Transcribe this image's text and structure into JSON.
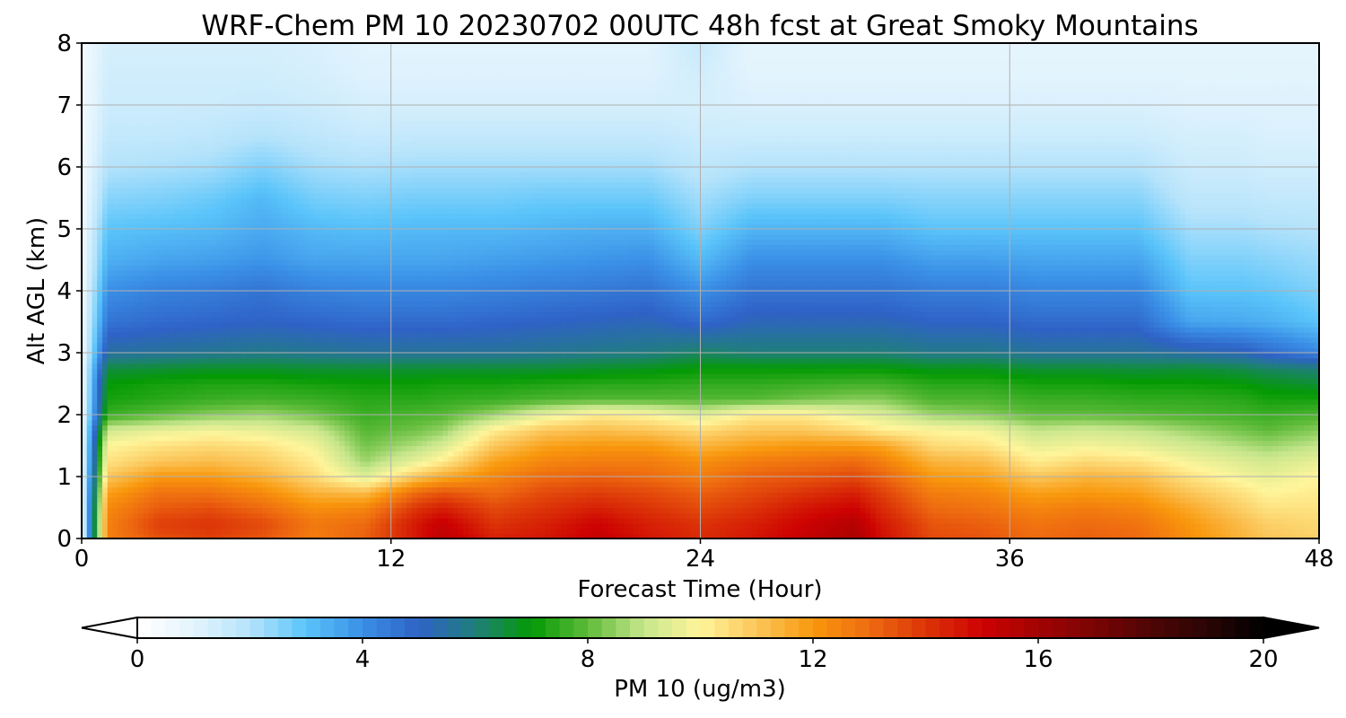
{
  "chart_data": {
    "type": "heatmap",
    "title": "WRF-Chem PM 10  20230702 00UTC 48h fcst at Great Smoky Mountains",
    "xlabel": "Forecast Time (Hour)",
    "ylabel": "Alt AGL (km)",
    "xlim": [
      0,
      48
    ],
    "ylim": [
      0,
      8
    ],
    "x_ticks": [
      0,
      12,
      24,
      36,
      48
    ],
    "y_ticks": [
      0,
      1,
      2,
      3,
      4,
      5,
      6,
      7,
      8
    ],
    "grid": true,
    "x": [
      0,
      1,
      3,
      5,
      7,
      9,
      11,
      13,
      14,
      16,
      18,
      20,
      22,
      24,
      26,
      28,
      30,
      31,
      33,
      35,
      37,
      39,
      41,
      43,
      45,
      46,
      48
    ],
    "y": [
      0,
      0.25,
      0.5,
      0.75,
      1.0,
      1.25,
      1.5,
      1.75,
      2.0,
      2.25,
      2.5,
      2.75,
      3.0,
      3.5,
      4.0,
      4.5,
      5.0,
      5.5,
      6.0,
      6.5,
      7.0,
      7.5,
      8.0
    ],
    "profiles": [
      {
        "hour": 0,
        "pm10": [
          0.5,
          0.5,
          0.5,
          0.5,
          0.5,
          0.5,
          0.5,
          0.5,
          0.5,
          0.5,
          0.5,
          0.5,
          0.5,
          0.5,
          0.5,
          0.5,
          0.5,
          0.5,
          0.5,
          0.5,
          0.5,
          0.5,
          0.5
        ]
      },
      {
        "hour": 1,
        "pm10": [
          12.5,
          12.5,
          12.3,
          11.8,
          11.0,
          10.4,
          10.0,
          9.2,
          7.6,
          7.2,
          7.0,
          6.5,
          5.5,
          4.6,
          4.0,
          3.4,
          3.0,
          2.5,
          2.0,
          1.7,
          1.5,
          1.4,
          1.3
        ]
      },
      {
        "hour": 3,
        "pm10": [
          13.5,
          13.8,
          13.3,
          12.8,
          12.0,
          11.0,
          10.4,
          9.6,
          8.0,
          7.4,
          7.2,
          6.6,
          5.6,
          4.8,
          4.3,
          3.6,
          3.1,
          2.6,
          2.1,
          1.7,
          1.5,
          1.4,
          1.3
        ]
      },
      {
        "hour": 5,
        "pm10": [
          13.8,
          14.0,
          13.5,
          12.8,
          12.0,
          11.2,
          10.6,
          9.8,
          8.4,
          7.6,
          7.3,
          6.7,
          5.7,
          4.9,
          4.4,
          3.7,
          3.2,
          2.8,
          2.2,
          1.8,
          1.5,
          1.4,
          1.3
        ]
      },
      {
        "hour": 7,
        "pm10": [
          13.4,
          13.6,
          13.0,
          12.3,
          11.5,
          10.9,
          10.4,
          9.6,
          8.6,
          7.7,
          7.3,
          6.7,
          5.8,
          5.0,
          4.6,
          3.9,
          3.5,
          3.2,
          2.6,
          2.0,
          1.6,
          1.4,
          1.3
        ]
      },
      {
        "hour": 9,
        "pm10": [
          12.6,
          12.7,
          12.2,
          11.4,
          10.6,
          10.2,
          9.8,
          9.2,
          8.2,
          7.6,
          7.2,
          6.6,
          5.7,
          4.9,
          4.3,
          3.6,
          3.2,
          2.7,
          2.2,
          1.8,
          1.5,
          1.3,
          1.2
        ]
      },
      {
        "hour": 11,
        "pm10": [
          13.2,
          13.0,
          12.4,
          11.2,
          9.4,
          8.6,
          8.2,
          7.9,
          7.6,
          7.4,
          7.1,
          6.6,
          5.6,
          4.8,
          4.2,
          3.6,
          3.1,
          2.6,
          2.1,
          1.6,
          1.3,
          1.1,
          1.0
        ]
      },
      {
        "hour": 13,
        "pm10": [
          14.6,
          14.6,
          14.0,
          13.0,
          11.0,
          9.6,
          8.8,
          8.2,
          7.8,
          7.4,
          7.1,
          6.6,
          5.6,
          4.8,
          4.2,
          3.6,
          3.2,
          2.7,
          2.2,
          1.7,
          1.3,
          1.1,
          1.0
        ]
      },
      {
        "hour": 14,
        "pm10": [
          15.4,
          15.2,
          14.4,
          13.4,
          11.6,
          10.2,
          9.3,
          8.5,
          7.9,
          7.5,
          7.2,
          6.6,
          5.6,
          4.8,
          4.2,
          3.6,
          3.2,
          2.7,
          2.2,
          1.7,
          1.3,
          1.1,
          1.0
        ]
      },
      {
        "hour": 16,
        "pm10": [
          14.4,
          14.0,
          13.6,
          13.0,
          12.4,
          11.8,
          11.0,
          10.2,
          8.6,
          7.6,
          7.2,
          6.6,
          5.6,
          4.9,
          4.3,
          3.7,
          3.2,
          2.7,
          2.2,
          1.7,
          1.3,
          1.1,
          1.0
        ]
      },
      {
        "hour": 18,
        "pm10": [
          14.6,
          14.4,
          14.0,
          13.6,
          13.0,
          12.4,
          11.8,
          11.0,
          9.6,
          7.8,
          7.3,
          6.6,
          5.7,
          5.0,
          4.4,
          3.8,
          3.3,
          2.8,
          2.2,
          1.7,
          1.3,
          1.1,
          1.0
        ]
      },
      {
        "hour": 20,
        "pm10": [
          15.2,
          15.0,
          14.4,
          13.8,
          13.2,
          12.6,
          12.0,
          11.2,
          10.2,
          7.9,
          7.4,
          6.7,
          5.8,
          5.1,
          4.5,
          3.9,
          3.4,
          2.8,
          2.2,
          1.7,
          1.3,
          1.1,
          1.0
        ]
      },
      {
        "hour": 22,
        "pm10": [
          14.6,
          14.4,
          14.0,
          13.6,
          13.0,
          12.6,
          12.0,
          11.0,
          10.0,
          7.9,
          7.4,
          6.8,
          5.9,
          5.2,
          4.6,
          4.0,
          3.4,
          2.8,
          2.2,
          1.7,
          1.3,
          1.1,
          1.0
        ]
      },
      {
        "hour": 24,
        "pm10": [
          14.2,
          14.0,
          13.6,
          13.2,
          12.6,
          12.2,
          11.4,
          10.6,
          9.4,
          7.9,
          7.5,
          7.0,
          6.2,
          4.8,
          4.0,
          3.2,
          2.6,
          2.2,
          1.8,
          1.5,
          1.3,
          1.4,
          1.6
        ]
      },
      {
        "hour": 26,
        "pm10": [
          14.6,
          14.4,
          14.0,
          13.6,
          13.2,
          12.6,
          11.8,
          11.0,
          10.2,
          7.9,
          7.5,
          7.0,
          6.0,
          5.2,
          4.6,
          4.0,
          3.3,
          2.6,
          2.0,
          1.5,
          1.2,
          1.0,
          0.9
        ]
      },
      {
        "hour": 28,
        "pm10": [
          15.2,
          15.0,
          14.6,
          14.0,
          13.4,
          12.8,
          12.0,
          11.0,
          10.2,
          8.2,
          7.6,
          7.0,
          6.0,
          5.2,
          4.6,
          4.0,
          3.3,
          2.6,
          2.0,
          1.5,
          1.2,
          1.0,
          0.9
        ]
      },
      {
        "hour": 30,
        "pm10": [
          15.8,
          15.6,
          15.0,
          14.4,
          13.6,
          13.0,
          12.0,
          10.6,
          9.6,
          8.4,
          7.7,
          7.0,
          6.0,
          5.2,
          4.6,
          4.0,
          3.3,
          2.6,
          2.0,
          1.5,
          1.2,
          1.0,
          0.9
        ]
      },
      {
        "hour": 31,
        "pm10": [
          14.8,
          14.6,
          14.2,
          13.8,
          13.2,
          12.6,
          11.8,
          10.2,
          9.4,
          8.4,
          7.7,
          7.0,
          6.0,
          5.2,
          4.6,
          4.0,
          3.3,
          2.6,
          2.0,
          1.5,
          1.2,
          1.0,
          0.9
        ]
      },
      {
        "hour": 33,
        "pm10": [
          13.6,
          13.4,
          13.0,
          12.6,
          12.0,
          11.4,
          10.6,
          10.0,
          8.6,
          7.8,
          7.4,
          6.8,
          5.8,
          5.0,
          4.4,
          3.7,
          3.0,
          2.5,
          2.0,
          1.5,
          1.2,
          1.0,
          0.9
        ]
      },
      {
        "hour": 35,
        "pm10": [
          13.4,
          13.2,
          12.8,
          12.4,
          11.8,
          11.2,
          10.4,
          9.8,
          8.4,
          7.8,
          7.4,
          6.8,
          5.8,
          5.0,
          4.4,
          3.7,
          3.0,
          2.5,
          2.0,
          1.5,
          1.2,
          1.0,
          0.9
        ]
      },
      {
        "hour": 37,
        "pm10": [
          13.0,
          12.8,
          12.4,
          11.8,
          11.0,
          10.2,
          9.6,
          9.0,
          8.0,
          7.6,
          7.2,
          6.6,
          5.6,
          4.8,
          4.2,
          3.6,
          3.0,
          2.5,
          2.0,
          1.5,
          1.2,
          1.0,
          0.9
        ]
      },
      {
        "hour": 39,
        "pm10": [
          13.2,
          13.0,
          12.6,
          12.0,
          11.4,
          10.6,
          9.8,
          9.2,
          8.0,
          7.6,
          7.2,
          6.6,
          5.6,
          4.8,
          4.2,
          3.6,
          3.0,
          2.5,
          2.0,
          1.5,
          1.2,
          1.0,
          0.9
        ]
      },
      {
        "hour": 41,
        "pm10": [
          13.0,
          12.8,
          12.4,
          11.8,
          11.2,
          10.4,
          9.6,
          9.0,
          7.9,
          7.5,
          7.1,
          6.5,
          5.6,
          4.8,
          4.2,
          3.6,
          3.0,
          2.5,
          2.0,
          1.5,
          1.2,
          1.0,
          0.9
        ]
      },
      {
        "hour": 43,
        "pm10": [
          12.2,
          12.0,
          11.6,
          11.0,
          10.4,
          9.8,
          9.2,
          8.6,
          7.8,
          7.5,
          7.1,
          6.6,
          5.4,
          3.6,
          3.0,
          2.6,
          2.2,
          1.8,
          1.5,
          1.3,
          1.1,
          1.0,
          0.9
        ]
      },
      {
        "hour": 45,
        "pm10": [
          11.4,
          11.2,
          10.8,
          10.4,
          9.8,
          9.4,
          8.8,
          8.2,
          7.7,
          7.4,
          7.0,
          6.4,
          5.2,
          3.5,
          3.0,
          2.6,
          2.2,
          1.8,
          1.5,
          1.3,
          1.1,
          1.0,
          0.9
        ]
      },
      {
        "hour": 46,
        "pm10": [
          11.0,
          10.8,
          10.4,
          10.0,
          9.6,
          9.2,
          8.6,
          8.0,
          7.6,
          7.2,
          6.8,
          6.2,
          4.8,
          3.4,
          2.9,
          2.5,
          2.1,
          1.7,
          1.4,
          1.2,
          1.1,
          1.0,
          0.9
        ]
      },
      {
        "hour": 48,
        "pm10": [
          10.8,
          10.6,
          10.4,
          10.2,
          10.0,
          9.6,
          9.0,
          8.4,
          7.8,
          7.2,
          6.6,
          6.0,
          4.2,
          3.0,
          2.6,
          2.3,
          2.0,
          1.7,
          1.4,
          1.2,
          1.1,
          1.0,
          0.9
        ]
      }
    ],
    "colorbar": {
      "label": "PM 10  (ug/m3)",
      "min": 0,
      "max": 20,
      "ticks": [
        0,
        4,
        8,
        12,
        16,
        20
      ],
      "extend": "both",
      "orientation": "horizontal",
      "placement": "bottom",
      "stops": [
        {
          "value": 0,
          "color": "#ffffff"
        },
        {
          "value": 1,
          "color": "#e3f4fd"
        },
        {
          "value": 2,
          "color": "#b5e3fb"
        },
        {
          "value": 3,
          "color": "#5ac4fa"
        },
        {
          "value": 4,
          "color": "#3a8fe6"
        },
        {
          "value": 5,
          "color": "#2f62c6"
        },
        {
          "value": 6,
          "color": "#1f7f7a"
        },
        {
          "value": 7,
          "color": "#049a04"
        },
        {
          "value": 8,
          "color": "#5fbb3a"
        },
        {
          "value": 9,
          "color": "#c7e68c"
        },
        {
          "value": 10,
          "color": "#fff59b"
        },
        {
          "value": 11,
          "color": "#fbc65a"
        },
        {
          "value": 12,
          "color": "#f9980d"
        },
        {
          "value": 13,
          "color": "#ee6b10"
        },
        {
          "value": 14,
          "color": "#dc3408"
        },
        {
          "value": 15,
          "color": "#cd0202"
        },
        {
          "value": 16,
          "color": "#a30303"
        },
        {
          "value": 17,
          "color": "#7a0404"
        },
        {
          "value": 18,
          "color": "#4e0505"
        },
        {
          "value": 19,
          "color": "#2a0505"
        },
        {
          "value": 20,
          "color": "#000000"
        }
      ]
    }
  }
}
